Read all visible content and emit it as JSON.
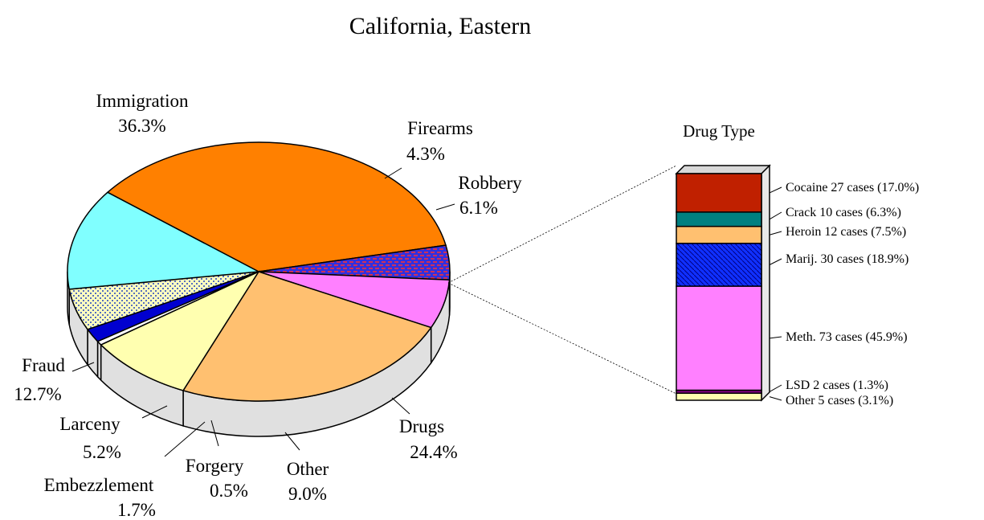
{
  "chart_data": [
    {
      "type": "pie",
      "title": "California, Eastern",
      "unit": "%",
      "slices": [
        {
          "label": "Immigration",
          "value": 36.3,
          "value_text": "36.3%",
          "color": "#ff8000",
          "pattern": "solid"
        },
        {
          "label": "Firearms",
          "value": 4.3,
          "value_text": "4.3%",
          "color": "#3030e0",
          "pattern": "red-dash"
        },
        {
          "label": "Robbery",
          "value": 6.1,
          "value_text": "6.1%",
          "color": "#ff80ff",
          "pattern": "solid"
        },
        {
          "label": "Drugs",
          "value": 24.4,
          "value_text": "24.4%",
          "color": "#ffc070",
          "pattern": "solid"
        },
        {
          "label": "Other",
          "value": 9.0,
          "value_text": "9.0%",
          "color": "#ffffb0",
          "pattern": "solid"
        },
        {
          "label": "Forgery",
          "value": 0.5,
          "value_text": "0.5%",
          "color": "#ffffff",
          "pattern": "solid"
        },
        {
          "label": "Embezzlement",
          "value": 1.7,
          "value_text": "1.7%",
          "color": "#0000d0",
          "pattern": "solid"
        },
        {
          "label": "Larceny",
          "value": 5.2,
          "value_text": "5.2%",
          "color": "#ffffc0",
          "pattern": "dots"
        },
        {
          "label": "Fraud",
          "value": 12.7,
          "value_text": "12.7%",
          "color": "#80ffff",
          "pattern": "solid"
        },
        {
          "label": "",
          "value": 0,
          "value_text": "",
          "color": "#8080ff",
          "pattern": "solid"
        }
      ],
      "exploded_slice": "Drugs"
    },
    {
      "type": "stacked-bar",
      "title": "Drug Type",
      "segments": [
        {
          "label": "Cocaine",
          "cases": 27,
          "percent": 17.0,
          "text": "Cocaine  27 cases (17.0%)",
          "color": "#c02000",
          "pattern": "solid"
        },
        {
          "label": "Crack",
          "cases": 10,
          "percent": 6.3,
          "text": "Crack  10 cases (6.3%)",
          "color": "#008080",
          "pattern": "solid"
        },
        {
          "label": "Heroin",
          "cases": 12,
          "percent": 7.5,
          "text": "Heroin  12 cases (7.5%)",
          "color": "#ffc070",
          "pattern": "solid"
        },
        {
          "label": "Marij.",
          "cases": 30,
          "percent": 18.9,
          "text": "Marij.  30 cases (18.9%)",
          "color": "#1030ff",
          "pattern": "hatch"
        },
        {
          "label": "Meth.",
          "cases": 73,
          "percent": 45.9,
          "text": "Meth.  73 cases (45.9%)",
          "color": "#ff80ff",
          "pattern": "solid"
        },
        {
          "label": "LSD",
          "cases": 2,
          "percent": 1.3,
          "text": "LSD  2 cases (1.3%)",
          "color": "#800080",
          "pattern": "solid"
        },
        {
          "label": "Other",
          "cases": 5,
          "percent": 3.1,
          "text": "Other  5 cases (3.1%)",
          "color": "#ffffb0",
          "pattern": "solid"
        }
      ]
    }
  ]
}
